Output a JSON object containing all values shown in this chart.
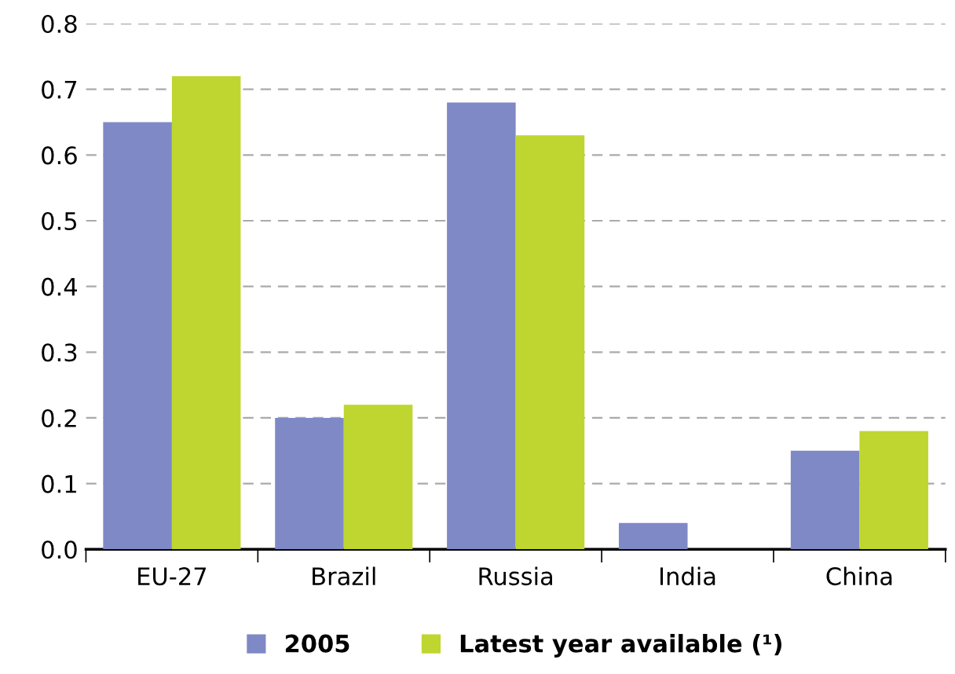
{
  "chart_data": {
    "type": "bar",
    "categories": [
      "EU-27",
      "Brazil",
      "Russia",
      "India",
      "China"
    ],
    "series": [
      {
        "name": "2005",
        "color": "#7f89c6",
        "values": [
          0.65,
          0.2,
          0.68,
          0.04,
          0.15
        ]
      },
      {
        "name": "Latest year available (¹)",
        "color": "#bed62f",
        "values": [
          0.72,
          0.22,
          0.63,
          null,
          0.18
        ]
      }
    ],
    "ylim": [
      0,
      0.8
    ],
    "yticks": [
      {
        "value": 0,
        "label": "0.0"
      },
      0.1,
      0.2,
      0.3,
      0.4,
      0.5,
      0.6,
      0.7,
      0.8
    ],
    "grid": "y",
    "legend": "bottom"
  }
}
